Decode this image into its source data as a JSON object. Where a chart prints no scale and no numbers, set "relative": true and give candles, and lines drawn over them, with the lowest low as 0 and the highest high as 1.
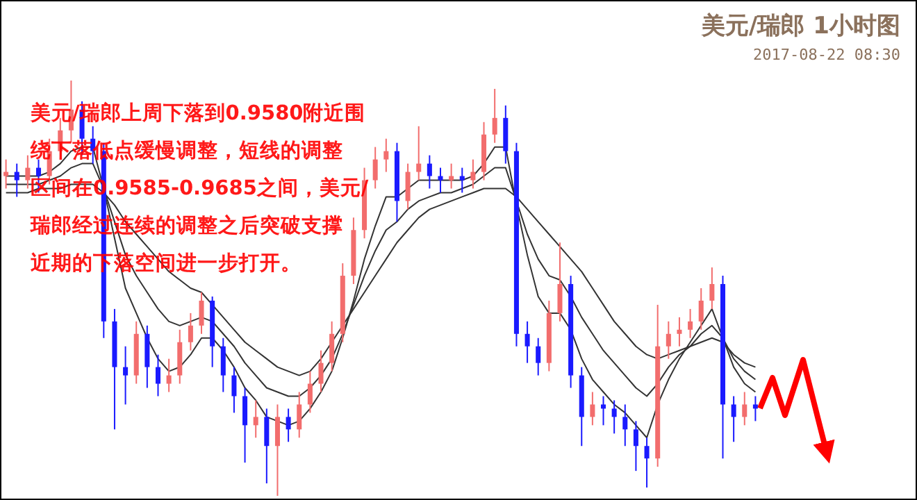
{
  "chart_data": {
    "type": "candlestick",
    "title": "美元/瑞郎 1小时图",
    "subtitle": "2017-08-22 08:30",
    "relative": true,
    "annotations": [
      "美元/瑞郎上周下落到0.9580附近围",
      "绕下落低点缓慢调整，短线的调整",
      "区间在0.9585-0.9685之间，美元/",
      "瑞郎经过连续的调整之后突破支撑",
      "近期的下落空间进一步打开。"
    ],
    "categories": [
      null,
      null,
      null,
      null,
      null,
      null,
      null,
      null,
      null,
      null,
      null,
      null,
      null,
      null,
      null,
      null,
      null,
      null,
      null,
      null,
      null,
      null,
      null,
      null,
      null,
      null,
      null,
      null,
      null,
      null,
      null,
      null,
      null,
      null,
      null,
      null,
      null,
      null,
      null,
      null,
      null,
      null,
      null,
      null,
      null,
      null,
      null,
      null,
      null,
      null,
      null,
      null,
      null,
      null,
      null,
      null,
      null,
      null,
      null,
      null,
      null,
      null,
      null,
      null,
      null,
      null,
      null,
      null,
      null,
      null
    ],
    "ohlc": [
      [
        0.77,
        0.81,
        0.74,
        0.78
      ],
      [
        0.78,
        0.8,
        0.72,
        0.76
      ],
      [
        0.76,
        0.82,
        0.74,
        0.79
      ],
      [
        0.79,
        0.81,
        0.73,
        0.77
      ],
      [
        0.77,
        0.86,
        0.75,
        0.83
      ],
      [
        0.83,
        0.91,
        0.81,
        0.88
      ],
      [
        0.88,
        1,
        0.85,
        0.93
      ],
      [
        0.93,
        0.95,
        0.82,
        0.86
      ],
      [
        0.86,
        0.89,
        0.8,
        0.83
      ],
      [
        0.83,
        0.85,
        0.38,
        0.42
      ],
      [
        0.42,
        0.45,
        0.16,
        0.31
      ],
      [
        0.31,
        0.36,
        0.22,
        0.29
      ],
      [
        0.29,
        0.42,
        0.27,
        0.39
      ],
      [
        0.39,
        0.41,
        0.26,
        0.31
      ],
      [
        0.31,
        0.34,
        0.24,
        0.27
      ],
      [
        0.27,
        0.33,
        0.25,
        0.29
      ],
      [
        0.29,
        0.4,
        0.27,
        0.37
      ],
      [
        0.37,
        0.44,
        0.35,
        0.41
      ],
      [
        0.41,
        0.49,
        0.39,
        0.47
      ],
      [
        0.47,
        0.48,
        0.31,
        0.36
      ],
      [
        0.36,
        0.38,
        0.25,
        0.29
      ],
      [
        0.29,
        0.31,
        0.2,
        0.24
      ],
      [
        0.24,
        0.26,
        0.08,
        0.17
      ],
      [
        0.17,
        0.23,
        0.14,
        0.19
      ],
      [
        0.19,
        0.21,
        0.03,
        0.12
      ],
      [
        0.12,
        0.22,
        0,
        0.19
      ],
      [
        0.19,
        0.21,
        0.13,
        0.16
      ],
      [
        0.16,
        0.25,
        0.14,
        0.22
      ],
      [
        0.22,
        0.3,
        0.2,
        0.27
      ],
      [
        0.27,
        0.35,
        0.25,
        0.32
      ],
      [
        0.32,
        0.42,
        0.3,
        0.39
      ],
      [
        0.39,
        0.56,
        0.37,
        0.53
      ],
      [
        0.53,
        0.67,
        0.51,
        0.64
      ],
      [
        0.64,
        0.79,
        0.62,
        0.76
      ],
      [
        0.76,
        0.84,
        0.74,
        0.81
      ],
      [
        0.81,
        0.86,
        0.78,
        0.83
      ],
      [
        0.83,
        0.85,
        0.66,
        0.71
      ],
      [
        0.71,
        0.8,
        0.69,
        0.78
      ],
      [
        0.78,
        0.89,
        0.76,
        0.8
      ],
      [
        0.8,
        0.82,
        0.74,
        0.77
      ],
      [
        0.77,
        0.79,
        0.73,
        0.76
      ],
      [
        0.76,
        0.8,
        0.74,
        0.77
      ],
      [
        0.77,
        0.79,
        0.73,
        0.76
      ],
      [
        0.76,
        0.81,
        0.74,
        0.78
      ],
      [
        0.78,
        0.9,
        0.76,
        0.87
      ],
      [
        0.87,
        0.98,
        0.85,
        0.91
      ],
      [
        0.91,
        0.94,
        0.8,
        0.83
      ],
      [
        0.83,
        0.85,
        0.36,
        0.39
      ],
      [
        0.39,
        0.42,
        0.32,
        0.36
      ],
      [
        0.36,
        0.38,
        0.29,
        0.32
      ],
      [
        0.32,
        0.47,
        0.3,
        0.44
      ],
      [
        0.44,
        0.61,
        0.42,
        0.51
      ],
      [
        0.51,
        0.53,
        0.26,
        0.29
      ],
      [
        0.29,
        0.31,
        0.12,
        0.19
      ],
      [
        0.19,
        0.25,
        0.17,
        0.22
      ],
      [
        0.22,
        0.24,
        0.17,
        0.21
      ],
      [
        0.21,
        0.23,
        0.15,
        0.19
      ],
      [
        0.19,
        0.22,
        0.12,
        0.16
      ],
      [
        0.16,
        0.18,
        0.06,
        0.12
      ],
      [
        0.12,
        0.14,
        0.02,
        0.09
      ],
      [
        0.09,
        0.46,
        0.07,
        0.36
      ],
      [
        0.36,
        0.42,
        0.33,
        0.39
      ],
      [
        0.39,
        0.43,
        0.36,
        0.4
      ],
      [
        0.4,
        0.45,
        0.38,
        0.42
      ],
      [
        0.42,
        0.5,
        0.4,
        0.47
      ],
      [
        0.47,
        0.55,
        0.45,
        0.51
      ],
      [
        0.51,
        0.53,
        0.09,
        0.22
      ],
      [
        0.22,
        0.24,
        0.13,
        0.19
      ],
      [
        0.19,
        0.25,
        0.17,
        0.22
      ],
      [
        0.22,
        0.24,
        0.18,
        0.21
      ]
    ],
    "series": [
      {
        "type": "line",
        "color": "#333333",
        "values": [
          0.73,
          0.73,
          0.73,
          0.74,
          0.74,
          0.74,
          0.75,
          0.75,
          0.75,
          0.73,
          0.7,
          0.66,
          0.63,
          0.6,
          0.57,
          0.54,
          0.52,
          0.5,
          0.49,
          0.46,
          0.43,
          0.4,
          0.37,
          0.35,
          0.33,
          0.31,
          0.3,
          0.29,
          0.3,
          0.33,
          0.37,
          0.41,
          0.45,
          0.49,
          0.53,
          0.57,
          0.61,
          0.64,
          0.67,
          0.69,
          0.7,
          0.71,
          0.72,
          0.73,
          0.74,
          0.74,
          0.74,
          0.72,
          0.69,
          0.66,
          0.63,
          0.6,
          0.57,
          0.54,
          0.5,
          0.46,
          0.42,
          0.39,
          0.36,
          0.34,
          0.33,
          0.34,
          0.35,
          0.36,
          0.37,
          0.38,
          0.37,
          0.34,
          0.32,
          0.31
        ]
      },
      {
        "type": "line",
        "color": "#333333",
        "values": [
          0.75,
          0.75,
          0.75,
          0.75,
          0.76,
          0.77,
          0.79,
          0.8,
          0.8,
          0.74,
          0.66,
          0.58,
          0.53,
          0.49,
          0.45,
          0.42,
          0.41,
          0.42,
          0.43,
          0.42,
          0.39,
          0.36,
          0.32,
          0.29,
          0.26,
          0.25,
          0.24,
          0.24,
          0.26,
          0.29,
          0.33,
          0.39,
          0.46,
          0.53,
          0.59,
          0.64,
          0.66,
          0.69,
          0.71,
          0.72,
          0.73,
          0.73,
          0.74,
          0.75,
          0.77,
          0.79,
          0.79,
          0.71,
          0.63,
          0.57,
          0.53,
          0.52,
          0.48,
          0.43,
          0.39,
          0.35,
          0.32,
          0.29,
          0.26,
          0.24,
          0.27,
          0.31,
          0.34,
          0.36,
          0.39,
          0.41,
          0.38,
          0.33,
          0.3,
          0.28
        ]
      },
      {
        "type": "line",
        "color": "#333333",
        "values": [
          0.77,
          0.77,
          0.77,
          0.77,
          0.78,
          0.8,
          0.83,
          0.84,
          0.84,
          0.74,
          0.62,
          0.5,
          0.44,
          0.38,
          0.33,
          0.3,
          0.31,
          0.34,
          0.38,
          0.38,
          0.35,
          0.31,
          0.26,
          0.23,
          0.19,
          0.18,
          0.17,
          0.18,
          0.21,
          0.25,
          0.3,
          0.38,
          0.47,
          0.57,
          0.65,
          0.72,
          0.72,
          0.74,
          0.76,
          0.76,
          0.76,
          0.76,
          0.76,
          0.77,
          0.8,
          0.84,
          0.84,
          0.7,
          0.58,
          0.48,
          0.44,
          0.44,
          0.4,
          0.33,
          0.28,
          0.25,
          0.22,
          0.2,
          0.17,
          0.14,
          0.22,
          0.28,
          0.33,
          0.37,
          0.41,
          0.45,
          0.38,
          0.31,
          0.27,
          0.25
        ]
      }
    ]
  }
}
